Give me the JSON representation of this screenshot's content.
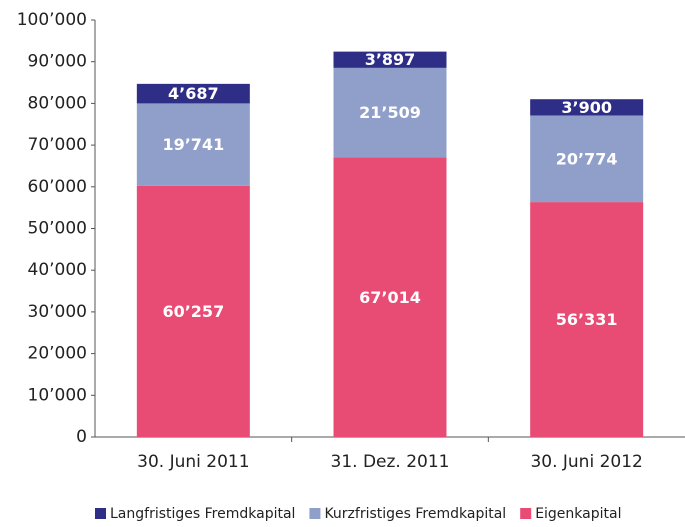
{
  "chart_data": {
    "type": "stacked_bar",
    "categories": [
      "30. Juni 2011",
      "31. Dez. 2011",
      "30. Juni 2012"
    ],
    "series": [
      {
        "name": "Eigenkapital",
        "color": "#e84c74",
        "values": [
          60257,
          67014,
          56331
        ],
        "value_labels": [
          "60’257",
          "67’014",
          "56’331"
        ]
      },
      {
        "name": "Kurzfristiges Fremdkapital",
        "color": "#8f9fc9",
        "values": [
          19741,
          21509,
          20774
        ],
        "value_labels": [
          "19’741",
          "21’509",
          "20’774"
        ]
      },
      {
        "name": "Langfristiges Fremdkapital",
        "color": "#2e2e86",
        "values": [
          4687,
          3897,
          3900
        ],
        "value_labels": [
          "4’687",
          "3’897",
          "3’900"
        ]
      }
    ],
    "ylim": [
      0,
      100000
    ],
    "yticks": [
      0,
      {
        "value": 10000,
        "label": "10’000"
      },
      {
        "value": 20000,
        "label": "20’000"
      },
      {
        "value": 30000,
        "label": "30’000"
      },
      {
        "value": 40000,
        "label": "40’000"
      },
      {
        "value": 50000,
        "label": "50’000"
      },
      {
        "value": 60000,
        "label": "60’000"
      },
      {
        "value": 70000,
        "label": "70’000"
      },
      {
        "value": 80000,
        "label": "80’000"
      },
      {
        "value": 90000,
        "label": "90’000"
      },
      {
        "value": 100000,
        "label": "100’000"
      }
    ],
    "grid": false,
    "legend": "bottom"
  }
}
